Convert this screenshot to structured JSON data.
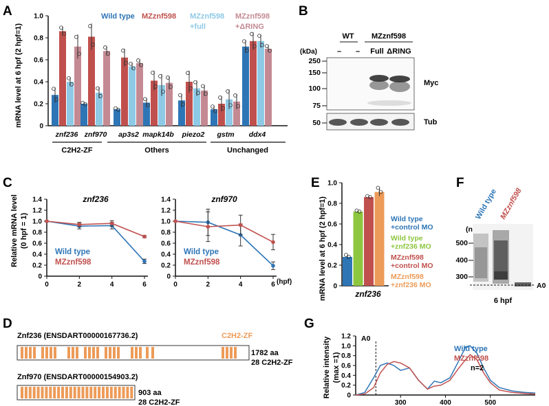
{
  "panels": {
    "A": "A",
    "B": "B",
    "C": "C",
    "D": "D",
    "E": "E",
    "F": "F",
    "G": "G"
  },
  "colors": {
    "wt": "#2e75b6",
    "mz": "#c0504d",
    "mzfull": "#8ecae6",
    "mzring": "#c48a93",
    "green": "#8dc63f",
    "orange": "#ed9b58",
    "gray": "#888888"
  },
  "panelA": {
    "ylabel": "mRNA level at 6 hpf (2 hpf=1)",
    "legend": {
      "wt": "Wild type",
      "mz": "MZznf598",
      "mzfull_1": "MZznf598",
      "mzfull_2": "+full",
      "mzring_1": "MZznf598",
      "mzring_2": "+ΔRING"
    },
    "groups": [
      "C2H2-ZF",
      "Others",
      "Unchanged"
    ],
    "chart_data": {
      "type": "bar",
      "categories": [
        "znf236",
        "znf970",
        "ap3s2",
        "mapk14b",
        "piezo2",
        "gstm",
        "ddx4"
      ],
      "ylim": [
        0,
        1.0
      ],
      "yticks": [
        "0",
        "0.2",
        "0.4",
        "0.6",
        "0.8",
        "1.0"
      ],
      "series": [
        {
          "name": "Wild type",
          "values": [
            0.28,
            0.2,
            0.15,
            0.21,
            0.23,
            0.15,
            0.72
          ]
        },
        {
          "name": "MZznf598",
          "values": [
            0.86,
            0.81,
            0.62,
            0.41,
            0.4,
            0.2,
            0.77
          ]
        },
        {
          "name": "MZznf598 +full",
          "values": [
            0.4,
            0.3,
            0.54,
            0.37,
            0.34,
            0.24,
            0.77
          ]
        },
        {
          "name": "MZznf598 +ΔRING",
          "values": [
            0.72,
            0.68,
            0.57,
            0.39,
            0.32,
            0.22,
            0.7
          ]
        }
      ],
      "errors": [
        [
          0.07,
          0.01,
          0.01,
          0.04,
          0.06,
          0.03,
          0.06
        ],
        [
          0.04,
          0.12,
          0.08,
          0.09,
          0.1,
          0.07,
          0.08
        ],
        [
          0.04,
          0.05,
          0.03,
          0.1,
          0.07,
          0.09,
          0.06
        ],
        [
          0.11,
          0.04,
          0.03,
          0.06,
          0.05,
          0.07,
          0.03
        ]
      ]
    }
  },
  "panelB": {
    "kda": "(kDa)",
    "wt": "WT",
    "mz": "MZznf598",
    "lanes": [
      "–",
      "–",
      "Full",
      "ΔRING"
    ],
    "markers": [
      "250",
      "150",
      "100",
      "75",
      "50"
    ],
    "bands": [
      "Myc",
      "Tub"
    ]
  },
  "panelC": {
    "ylabel_1": "Relative mRNA level",
    "ylabel_2": "(0 hpf = 1)",
    "xunit": "(hpf)",
    "chart_data": [
      {
        "type": "line",
        "title": "znf236",
        "x": [
          0,
          2,
          4,
          6
        ],
        "ylim": [
          0,
          1.4
        ],
        "yticks": [
          "0",
          "0.2",
          "0.4",
          "0.6",
          "0.8",
          "1.0",
          "1.2",
          "1.4"
        ],
        "xticks": [
          "0",
          "2",
          "4",
          "6"
        ],
        "series": [
          {
            "name": "Wild type",
            "values": [
              1.0,
              0.91,
              0.92,
              0.27
            ],
            "err": [
              0,
              0.05,
              0.06,
              0.04
            ]
          },
          {
            "name": "MZznf598",
            "values": [
              1.0,
              0.94,
              0.96,
              0.72
            ],
            "err": [
              0,
              0.04,
              0.05,
              0.02
            ]
          }
        ]
      },
      {
        "type": "line",
        "title": "znf970",
        "x": [
          0,
          2,
          4,
          6
        ],
        "ylim": [
          0,
          1.4
        ],
        "yticks": [
          "0",
          "0.2",
          "0.4",
          "0.6",
          "0.8",
          "1.0",
          "1.2",
          "1.4"
        ],
        "xticks": [
          "0",
          "2",
          "4",
          "6"
        ],
        "series": [
          {
            "name": "Wild type",
            "values": [
              1.0,
              0.98,
              0.75,
              0.19
            ],
            "err": [
              0,
              0.24,
              0.2,
              0.07
            ]
          },
          {
            "name": "MZznf598",
            "values": [
              1.0,
              0.9,
              0.93,
              0.62
            ],
            "err": [
              0,
              0.27,
              0.18,
              0.14
            ]
          }
        ]
      }
    ]
  },
  "panelD": {
    "domain": "C2H2-ZF",
    "p1_name": "Znf236 (ENSDART00000167736.2)",
    "p1_len": "1782 aa",
    "p1_zf": "28 C2H2-ZF",
    "p2_name": "Znf970 (ENSDART00000154903.2)",
    "p2_len": "903 aa",
    "p2_zf": "28 C2H2-ZF"
  },
  "panelE": {
    "ylabel": "mRNA level at 6 hpf (2 hpf=1)",
    "xlabel": "znf236",
    "legend": [
      [
        "Wild type",
        "+control MO"
      ],
      [
        "Wild type",
        "+znf236 MO"
      ],
      [
        "MZznf598",
        "+control MO"
      ],
      [
        "MZznf598",
        "+znf236 MO"
      ]
    ],
    "chart_data": {
      "type": "bar",
      "categories": [
        "Wild type +control MO",
        "Wild type +znf236 MO",
        "MZznf598 +control MO",
        "MZznf598 +znf236 MO"
      ],
      "values": [
        0.28,
        0.72,
        0.86,
        0.91
      ],
      "err": [
        0.02,
        0.01,
        0.01,
        0.04
      ],
      "ylim": [
        0,
        1.0
      ],
      "yticks": [
        "0",
        "0.2",
        "0.4",
        "0.6",
        "0.8",
        "1.0"
      ]
    }
  },
  "panelF": {
    "lane1": "Wild type",
    "lane2": "MZznf598",
    "nt": "(nt)",
    "markers": [
      "500",
      "400",
      "300"
    ],
    "a0": "A0",
    "time": "6 hpf"
  },
  "panelG": {
    "ylabel_1": "Relative intensity",
    "ylabel_2": "(max =1)",
    "a0": "A0",
    "n": "n=2",
    "chart_data": {
      "type": "line",
      "xticks": [
        "300",
        "400",
        "500"
      ],
      "yticks": [
        "0",
        "0.2",
        "0.4",
        "0.6",
        "0.8",
        "1.0",
        "1.2"
      ],
      "xlim": [
        200,
        600
      ],
      "ylim": [
        0,
        1.2
      ],
      "series": [
        {
          "name": "Wild type",
          "x": [
            200,
            220,
            240,
            255,
            270,
            285,
            300,
            320,
            340,
            360,
            375,
            390,
            410,
            430,
            445,
            455,
            470,
            485,
            500,
            520,
            550,
            580,
            600
          ],
          "values": [
            0.0,
            0.05,
            0.35,
            0.6,
            0.65,
            0.6,
            0.5,
            0.55,
            0.3,
            0.12,
            0.28,
            0.25,
            0.35,
            0.7,
            0.98,
            1.0,
            0.85,
            0.55,
            0.3,
            0.15,
            0.08,
            0.05,
            0.04
          ]
        },
        {
          "name": "MZznf598",
          "x": [
            200,
            220,
            240,
            255,
            270,
            285,
            300,
            320,
            340,
            360,
            375,
            390,
            410,
            430,
            445,
            455,
            470,
            485,
            500,
            520,
            550,
            580,
            600
          ],
          "values": [
            0.0,
            0.02,
            0.15,
            0.45,
            0.62,
            0.68,
            0.65,
            0.55,
            0.3,
            0.12,
            0.18,
            0.2,
            0.3,
            0.55,
            0.72,
            0.82,
            0.72,
            0.45,
            0.25,
            0.1,
            0.05,
            0.03,
            0.02
          ]
        }
      ]
    }
  }
}
